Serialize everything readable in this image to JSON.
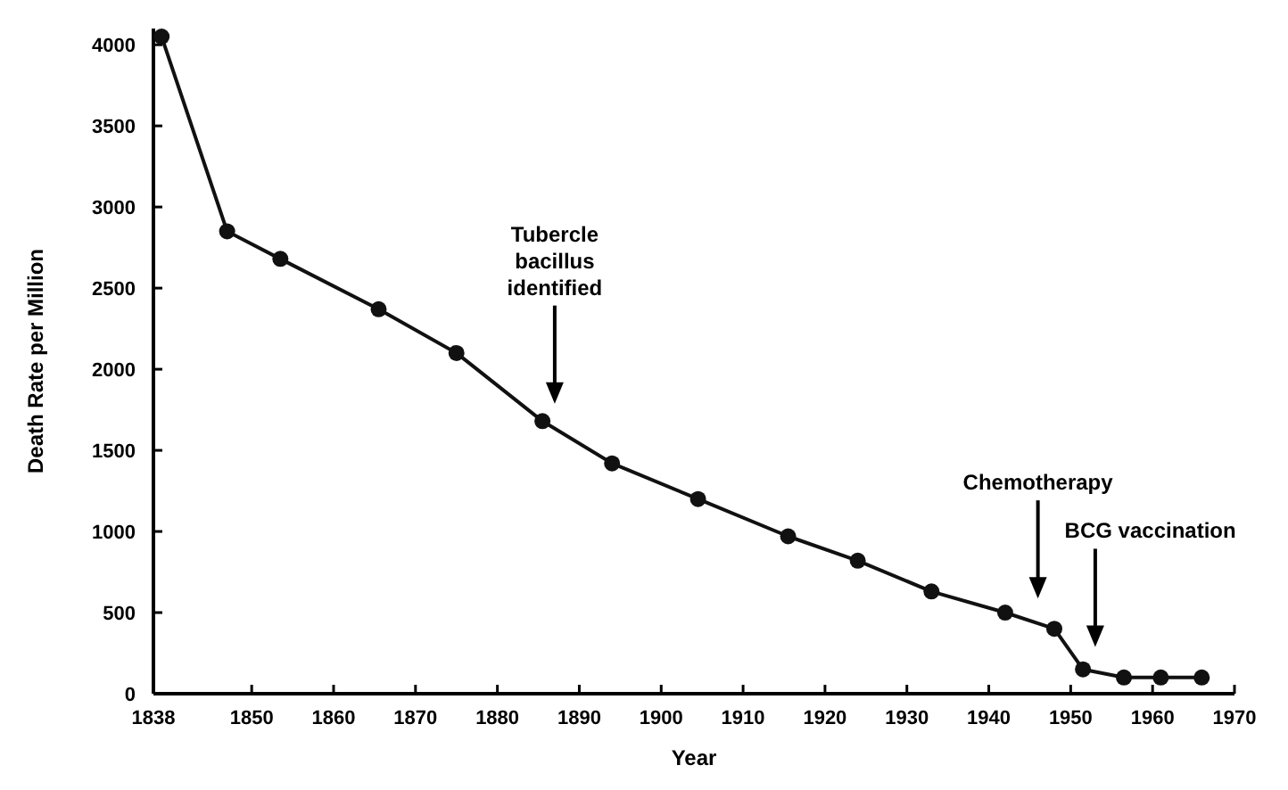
{
  "chart_data": {
    "type": "line",
    "xlabel": "Year",
    "ylabel": "Death Rate per Million",
    "x": [
      1839,
      1847,
      1853.5,
      1865.5,
      1875,
      1885.5,
      1894,
      1904.5,
      1915.5,
      1924,
      1933,
      1942,
      1948,
      1951.5,
      1956.5,
      1961,
      1966
    ],
    "series": [
      {
        "color": "#111111",
        "values": [
          4050,
          2850,
          2680,
          2370,
          2100,
          1680,
          1420,
          1200,
          970,
          820,
          630,
          500,
          400,
          150,
          100,
          100,
          100
        ]
      }
    ],
    "xlim": [
      1838,
      1970
    ],
    "xticks": [
      1838,
      1850,
      1860,
      1870,
      1880,
      1890,
      1900,
      1910,
      1920,
      1930,
      1940,
      1950,
      1960,
      1970
    ],
    "ylim": [
      0,
      4100
    ],
    "yticks": [
      0,
      500,
      1000,
      1500,
      2000,
      2500,
      3000,
      3500,
      4000
    ],
    "grid": false,
    "marker": "circle",
    "line_style": "solid",
    "ref_lines": [
      {
        "axis": "x",
        "value": 1887,
        "label": "Tubercle\nbacillus\nidentified"
      },
      {
        "axis": "x",
        "value": 1946,
        "label": "Chemotherapy"
      },
      {
        "axis": "x",
        "value": 1953,
        "label": "BCG vaccination"
      }
    ]
  }
}
